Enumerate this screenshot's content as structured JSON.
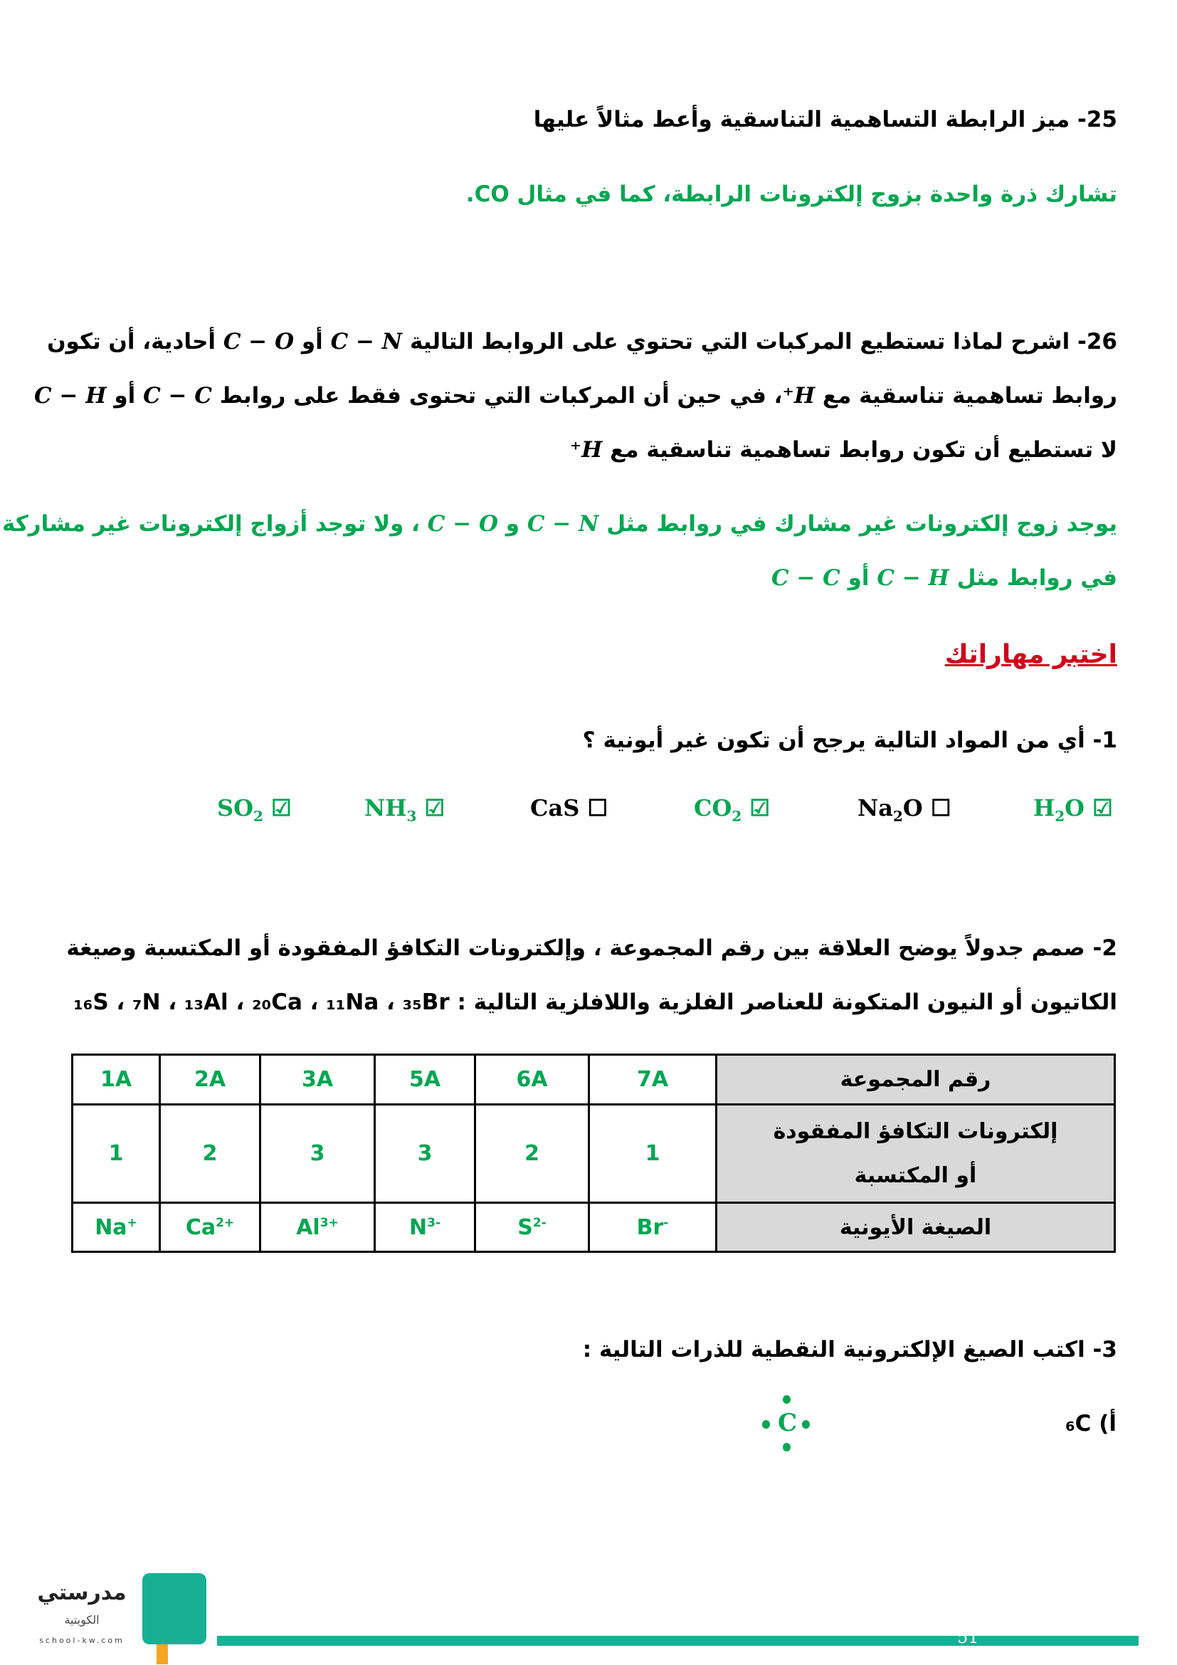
{
  "q25": {
    "question": "25- ميز الرابطة التساهمية التناسقية وأعط مثالاً عليها",
    "answer": "تشارك ذرة واحدة بزوج إلكترونات الرابطة، كما في مثال CO."
  },
  "q26": {
    "line1_a": "26- اشرح لماذا تستطيع المركبات التي تحتوي على الروابط التالية ",
    "bond_cn": "C − N",
    "or": " أو ",
    "bond_co": "C − O",
    "line1_b": " أحادية، أن تكون",
    "line2_a": "روابط تساهمية تناسقية مع ",
    "h_plus": "H⁺",
    "line2_b": "، في حين أن المركبات التي تحتوى فقط على روابط ",
    "bond_cc": "C − C",
    "bond_ch": "C − H",
    "line3": "لا تستطيع أن تكون روابط تساهمية تناسقية مع ",
    "answer1_a": "يوجد زوج إلكترونات غير مشارك في روابط مثل ",
    "and": " و ",
    "answer1_b": " ، ولا توجد أزواج إلكترونات غير مشاركة",
    "answer2_a": "في روابط مثل "
  },
  "skills_heading": "اختبر مهاراتك",
  "s1": {
    "question": "1- أي من المواد التالية يرجح أن تكون غير أيونية ؟",
    "options": [
      {
        "base": "H",
        "sub": "2",
        "rest": "O",
        "checked": true
      },
      {
        "base": "Na",
        "sub": "2",
        "rest": "O",
        "checked": false
      },
      {
        "base": "CO",
        "sub": "2",
        "rest": "",
        "checked": true
      },
      {
        "base": "CaS",
        "sub": "",
        "rest": "",
        "checked": false
      },
      {
        "base": "NH",
        "sub": "3",
        "rest": "",
        "checked": true
      },
      {
        "base": "SO",
        "sub": "2",
        "rest": "",
        "checked": true
      }
    ]
  },
  "s2": {
    "line1": "2- صمم جدولاً يوضح العلاقة بين رقم المجموعة ، وإلكترونات التكافؤ المفقودة أو المكتسبة وصيغة",
    "line2": "الكاتيون أو النيون المتكونة للعناصر الفلزية واللافلزية التالية : ",
    "elements": "₁₆S ، ₇N ، ₁₃Al ، ₂₀Ca ، ₁₁Na ، ₃₅Br",
    "table": {
      "row_headers": [
        "رقم المجموعة",
        "إلكترونات التكافؤ المفقودة أو المكتسبة",
        "الصيغة الأيونية"
      ],
      "groups": [
        "1A",
        "2A",
        "3A",
        "5A",
        "6A",
        "7A"
      ],
      "electrons": [
        "1",
        "2",
        "3",
        "3",
        "2",
        "1"
      ],
      "ions": [
        {
          "sym": "Na",
          "charge": "+"
        },
        {
          "sym": "Ca",
          "charge": "2+"
        },
        {
          "sym": "Al",
          "charge": "3+"
        },
        {
          "sym": "N",
          "charge": "3-"
        },
        {
          "sym": "S",
          "charge": "2-"
        },
        {
          "sym": "Br",
          "charge": "-"
        }
      ]
    }
  },
  "s3": {
    "question": "3- اكتب الصيغ الإلكترونية النقطية للذرات التالية :",
    "item_a": "أ) ₆C",
    "lewis_symbol": "C"
  },
  "footer": {
    "page_number": "51",
    "logo_text": "مدرستي",
    "logo_sub": "الكويتية",
    "logo_site": "school-kw.com"
  },
  "colors": {
    "answer": "#00a651",
    "heading": "#d0021b",
    "footer_bar": "#17b095",
    "table_header": "#d9d9d9"
  }
}
